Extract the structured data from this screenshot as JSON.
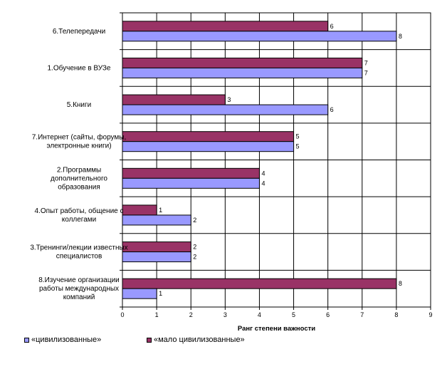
{
  "chart_data": {
    "type": "bar",
    "orientation": "horizontal",
    "categories": [
      "6.Телепередачи",
      "1.Обучение в ВУЗе",
      "5.Книги",
      "7.Интернет (сайты, форумы, электронные книги)",
      "2.Программы дополнительного образования",
      "4.Опыт работы, общение с коллегами",
      "3.Тренинги/лекции известных специалистов",
      "8.Изучение организации работы  международных компаний"
    ],
    "category_lines": [
      [
        "6.Телепередачи"
      ],
      [
        "1.Обучение в ВУЗе"
      ],
      [
        "5.Книги"
      ],
      [
        "7.Интернет (сайты, форумы,",
        "электронные книги)"
      ],
      [
        "2.Программы",
        "дополнительного",
        "образования"
      ],
      [
        "4.Опыт работы, общение с",
        "коллегами"
      ],
      [
        "3.Тренинги/лекции известных",
        "специалистов"
      ],
      [
        "8.Изучение организации",
        "работы  международных",
        "компаний"
      ]
    ],
    "series": [
      {
        "name": "«мало цивилизованные»",
        "values": [
          6,
          7,
          3,
          5,
          4,
          1,
          2,
          8
        ],
        "color": "#993366"
      },
      {
        "name": "«цивилизованные»",
        "values": [
          8,
          7,
          6,
          5,
          4,
          2,
          2,
          1
        ],
        "color": "#9999FF"
      }
    ],
    "xlabel": "Ранг степени важности",
    "ylabel": "",
    "xlim": [
      0,
      9
    ],
    "xticks": [
      "0",
      "1",
      "2",
      "3",
      "4",
      "5",
      "6",
      "7",
      "8",
      "9"
    ],
    "grid": true,
    "legend_position": "bottom"
  },
  "legend": {
    "items": [
      {
        "label": "«цивилизованные»",
        "color": "#9999FF"
      },
      {
        "label": "«мало цивилизованные»",
        "color": "#993366"
      }
    ]
  }
}
